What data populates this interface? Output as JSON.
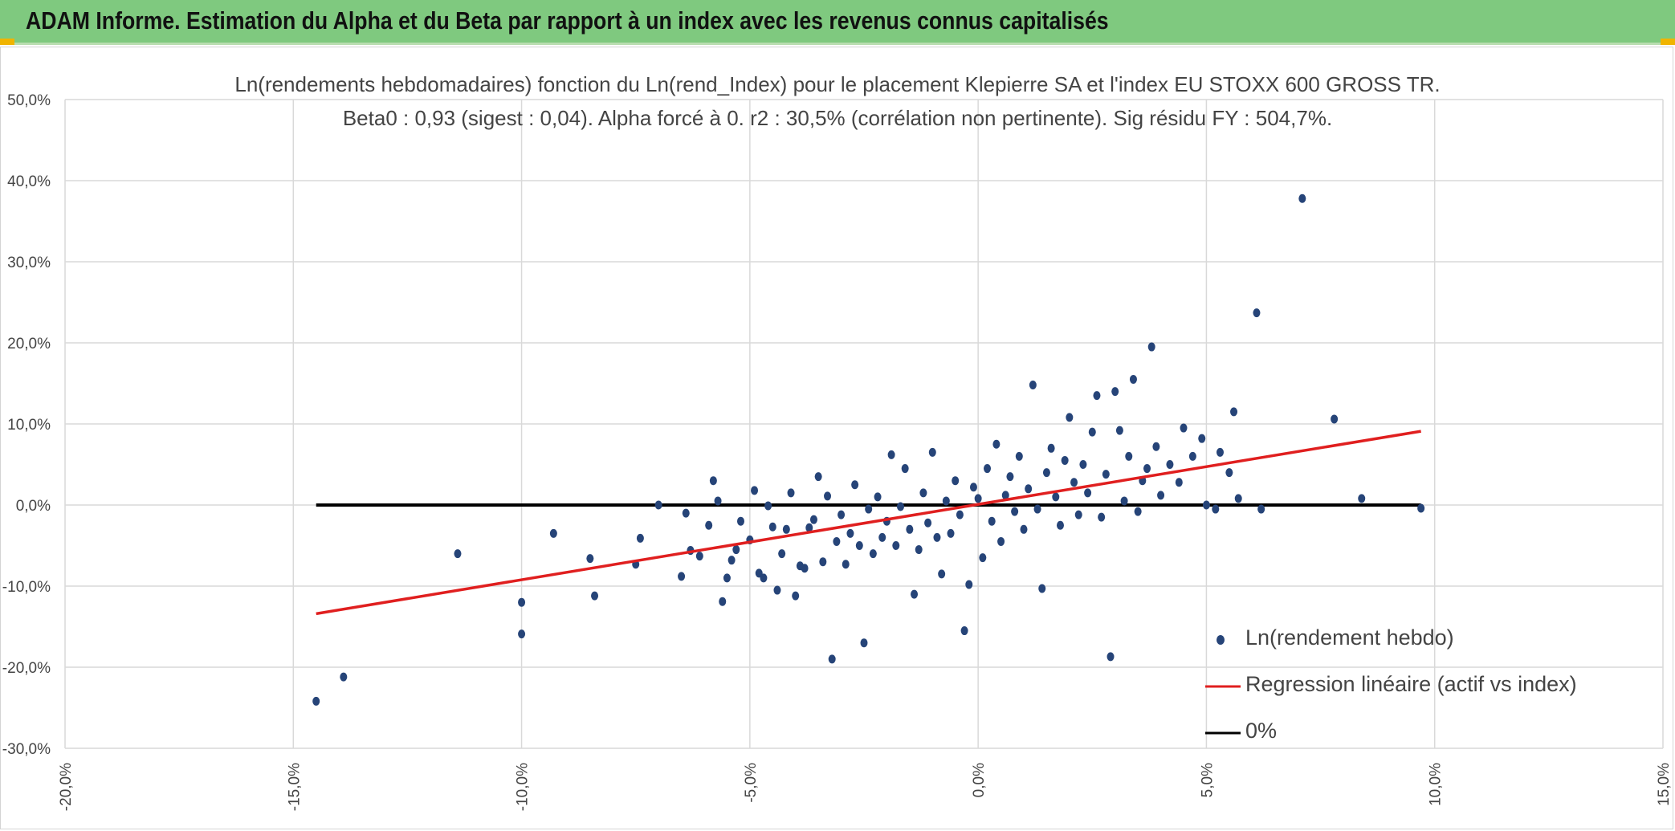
{
  "header": {
    "title": "ADAM Informe. Estimation du Alpha et du Beta par rapport à un index avec les revenus connus capitalisés"
  },
  "colors": {
    "header_bg": "#7fc97f",
    "points": "#264478",
    "regression": "#e01f1f",
    "zero_line": "#000000",
    "grid": "#d9d9d9"
  },
  "chart_data": {
    "type": "scatter",
    "title": "Ln(rendements hebdomadaires) fonction du Ln(rend_Index) pour le placement Klepierre SA et l'index EU STOXX 600 GROSS TR.",
    "subtitle": "Beta0 : 0,93 (sigest : 0,04). Alpha forcé à 0. r2 : 30,5% (corrélation non pertinente). Sig résidu FY : 504,7%.",
    "xlim": [
      -0.2,
      0.15
    ],
    "ylim": [
      -0.3,
      0.5
    ],
    "x_ticks": [
      "-20,0%",
      "-15,0%",
      "-10,0%",
      "-5,0%",
      "0,0%",
      "5,0%",
      "10,0%",
      "15,0%"
    ],
    "y_ticks": [
      "-30,0%",
      "-20,0%",
      "-10,0%",
      "0,0%",
      "10,0%",
      "20,0%",
      "30,0%",
      "40,0%",
      "50,0%"
    ],
    "grid": true,
    "legend_position": "bottom-right",
    "series": [
      {
        "name": "Ln(rendement hebdo)",
        "kind": "scatter",
        "points": [
          [
            -0.145,
            -0.242
          ],
          [
            -0.139,
            -0.212
          ],
          [
            -0.114,
            -0.06
          ],
          [
            -0.1,
            -0.159
          ],
          [
            -0.1,
            -0.12
          ],
          [
            -0.093,
            -0.035
          ],
          [
            -0.085,
            -0.066
          ],
          [
            -0.084,
            -0.112
          ],
          [
            -0.075,
            -0.073
          ],
          [
            -0.074,
            -0.041
          ],
          [
            -0.07,
            0.0
          ],
          [
            -0.065,
            -0.088
          ],
          [
            -0.064,
            -0.01
          ],
          [
            -0.063,
            -0.056
          ],
          [
            -0.061,
            -0.063
          ],
          [
            -0.059,
            -0.025
          ],
          [
            -0.058,
            0.03
          ],
          [
            -0.057,
            0.005
          ],
          [
            -0.056,
            -0.119
          ],
          [
            -0.055,
            -0.09
          ],
          [
            -0.054,
            -0.068
          ],
          [
            -0.053,
            -0.055
          ],
          [
            -0.052,
            -0.02
          ],
          [
            -0.05,
            -0.043
          ],
          [
            -0.049,
            0.018
          ],
          [
            -0.048,
            -0.084
          ],
          [
            -0.047,
            -0.09
          ],
          [
            -0.046,
            -0.001
          ],
          [
            -0.045,
            -0.027
          ],
          [
            -0.044,
            -0.105
          ],
          [
            -0.043,
            -0.06
          ],
          [
            -0.042,
            -0.03
          ],
          [
            -0.041,
            0.015
          ],
          [
            -0.04,
            -0.112
          ],
          [
            -0.039,
            -0.075
          ],
          [
            -0.038,
            -0.078
          ],
          [
            -0.037,
            -0.028
          ],
          [
            -0.036,
            -0.018
          ],
          [
            -0.035,
            0.035
          ],
          [
            -0.034,
            -0.07
          ],
          [
            -0.033,
            0.011
          ],
          [
            -0.032,
            -0.19
          ],
          [
            -0.031,
            -0.045
          ],
          [
            -0.03,
            -0.012
          ],
          [
            -0.029,
            -0.073
          ],
          [
            -0.028,
            -0.035
          ],
          [
            -0.027,
            0.025
          ],
          [
            -0.026,
            -0.05
          ],
          [
            -0.025,
            -0.17
          ],
          [
            -0.024,
            -0.005
          ],
          [
            -0.023,
            -0.06
          ],
          [
            -0.022,
            0.01
          ],
          [
            -0.021,
            -0.04
          ],
          [
            -0.02,
            -0.02
          ],
          [
            -0.019,
            0.062
          ],
          [
            -0.018,
            -0.05
          ],
          [
            -0.017,
            -0.002
          ],
          [
            -0.016,
            0.045
          ],
          [
            -0.015,
            -0.03
          ],
          [
            -0.014,
            -0.11
          ],
          [
            -0.013,
            -0.055
          ],
          [
            -0.012,
            0.015
          ],
          [
            -0.011,
            -0.022
          ],
          [
            -0.01,
            0.065
          ],
          [
            -0.009,
            -0.04
          ],
          [
            -0.008,
            -0.085
          ],
          [
            -0.007,
            0.005
          ],
          [
            -0.006,
            -0.035
          ],
          [
            -0.005,
            0.03
          ],
          [
            -0.004,
            -0.012
          ],
          [
            -0.003,
            -0.155
          ],
          [
            -0.002,
            -0.098
          ],
          [
            -0.001,
            0.022
          ],
          [
            0.0,
            0.008
          ],
          [
            0.001,
            -0.065
          ],
          [
            0.002,
            0.045
          ],
          [
            0.003,
            -0.02
          ],
          [
            0.004,
            0.075
          ],
          [
            0.005,
            -0.045
          ],
          [
            0.006,
            0.012
          ],
          [
            0.007,
            0.035
          ],
          [
            0.008,
            -0.008
          ],
          [
            0.009,
            0.06
          ],
          [
            0.01,
            -0.03
          ],
          [
            0.011,
            0.02
          ],
          [
            0.012,
            0.148
          ],
          [
            0.013,
            -0.005
          ],
          [
            0.014,
            -0.103
          ],
          [
            0.015,
            0.04
          ],
          [
            0.016,
            0.07
          ],
          [
            0.017,
            0.01
          ],
          [
            0.018,
            -0.025
          ],
          [
            0.019,
            0.055
          ],
          [
            0.02,
            0.108
          ],
          [
            0.021,
            0.028
          ],
          [
            0.022,
            -0.012
          ],
          [
            0.023,
            0.05
          ],
          [
            0.024,
            0.015
          ],
          [
            0.025,
            0.09
          ],
          [
            0.026,
            0.135
          ],
          [
            0.027,
            -0.015
          ],
          [
            0.028,
            0.038
          ],
          [
            0.029,
            -0.187
          ],
          [
            0.03,
            0.14
          ],
          [
            0.031,
            0.092
          ],
          [
            0.032,
            0.005
          ],
          [
            0.033,
            0.06
          ],
          [
            0.034,
            0.155
          ],
          [
            0.035,
            -0.008
          ],
          [
            0.036,
            0.03
          ],
          [
            0.037,
            0.045
          ],
          [
            0.038,
            0.195
          ],
          [
            0.039,
            0.072
          ],
          [
            0.04,
            0.012
          ],
          [
            0.042,
            0.05
          ],
          [
            0.044,
            0.028
          ],
          [
            0.045,
            0.095
          ],
          [
            0.047,
            0.06
          ],
          [
            0.049,
            0.082
          ],
          [
            0.05,
            0.0
          ],
          [
            0.052,
            -0.005
          ],
          [
            0.053,
            0.065
          ],
          [
            0.055,
            0.04
          ],
          [
            0.056,
            0.115
          ],
          [
            0.057,
            0.008
          ],
          [
            0.061,
            0.237
          ],
          [
            0.062,
            -0.005
          ],
          [
            0.071,
            0.378
          ],
          [
            0.078,
            0.106
          ],
          [
            0.084,
            0.008
          ],
          [
            0.097,
            -0.004
          ]
        ]
      },
      {
        "name": "Regression linéaire (actif vs index)",
        "kind": "line",
        "points": [
          [
            -0.145,
            -0.134
          ],
          [
            0.097,
            0.091
          ]
        ]
      },
      {
        "name": "0%",
        "kind": "line",
        "points": [
          [
            -0.145,
            0.0
          ],
          [
            0.097,
            0.0
          ]
        ]
      }
    ]
  }
}
